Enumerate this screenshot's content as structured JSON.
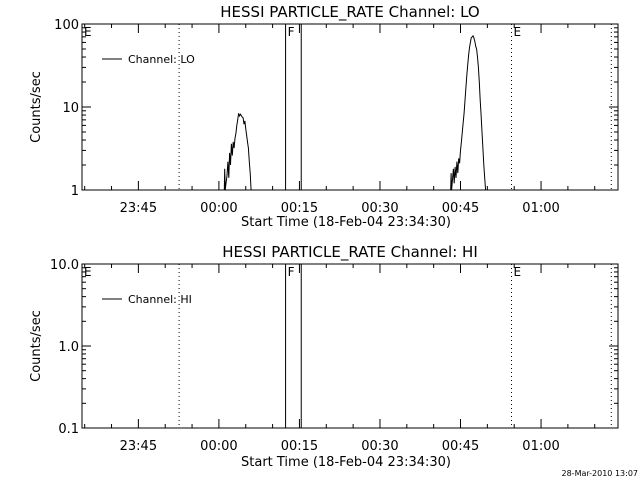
{
  "chart_data": [
    {
      "type": "line",
      "title": "HESSI PARTICLE_RATE Channel: LO",
      "xlabel": "Start Time (18-Feb-04 23:34:30)",
      "ylabel": "Counts/sec",
      "yscale": "log",
      "ylim": [
        1,
        100
      ],
      "xlim_seconds_from_start": [
        0,
        5990
      ],
      "x_tick_labels": [
        "23:45",
        "00:00",
        "00:15",
        "00:30",
        "00:45",
        "01:00"
      ],
      "x_tick_seconds_from_start": [
        630,
        1530,
        2430,
        3330,
        4230,
        5130
      ],
      "y_ticks": [
        1,
        10,
        100
      ],
      "y_tick_labels": [
        "1",
        "10",
        "100"
      ],
      "legend": {
        "label": "Channel: LO",
        "position": "top-left"
      },
      "series": [
        {
          "name": "Channel: LO",
          "x": [
            1590,
            1595,
            1600,
            1620,
            1630,
            1640,
            1650,
            1660,
            1670,
            1680,
            1690,
            1700,
            1710,
            1720,
            1730,
            1740,
            1750,
            1760,
            1770,
            1790,
            1800,
            1810,
            1820,
            1830,
            1840,
            1850,
            1860,
            1870,
            1880,
            1890,
            1900,
            1910,
            1920,
            1930
          ],
          "y": [
            1.0,
            1.8,
            1.0,
            1.5,
            2.2,
            1.4,
            2.8,
            2.0,
            3.6,
            2.6,
            3.8,
            3.2,
            4.2,
            4.8,
            6.0,
            7.0,
            8.4,
            7.8,
            8.2,
            7.6,
            7.4,
            6.2,
            6.8,
            5.4,
            4.6,
            3.8,
            3.2,
            2.2,
            1.6,
            1.0,
            1.0,
            1.0,
            1.0,
            1.0
          ]
        },
        {
          "name": "Channel: LO",
          "x": [
            4120,
            4125,
            4130,
            4150,
            4160,
            4170,
            4180,
            4190,
            4200,
            4210,
            4220,
            4230,
            4240,
            4250,
            4260,
            4270,
            4280,
            4290,
            4300,
            4310,
            4320,
            4330,
            4340,
            4350,
            4360,
            4370,
            4380,
            4390,
            4400,
            4410,
            4420,
            4430,
            4440,
            4450,
            4460,
            4470,
            4480,
            4490,
            4500,
            4510,
            4520,
            4530,
            4540,
            4550,
            4560,
            4570
          ],
          "y": [
            1.0,
            1.6,
            1.0,
            1.8,
            1.2,
            1.9,
            1.4,
            2.2,
            1.6,
            2.4,
            2.1,
            3.0,
            3.8,
            5.0,
            6.5,
            8.5,
            12,
            17,
            24,
            32,
            42,
            52,
            60,
            68,
            70,
            72,
            68,
            62,
            54,
            50,
            40,
            30,
            20,
            12,
            8,
            5,
            3.2,
            2.0,
            1.4,
            1.0,
            1.0,
            1.0,
            1.0,
            1.0,
            1.0,
            1.0
          ]
        }
      ],
      "annotations": [
        {
          "text": "E",
          "x": 0
        },
        {
          "text": "F",
          "x": 2275
        },
        {
          "text": "E",
          "x": 4800
        }
      ],
      "dotted_lines_x": [
        1085,
        4800,
        5915
      ],
      "solid_lines_x": [
        2275,
        2450
      ]
    },
    {
      "type": "line",
      "title": "HESSI PARTICLE_RATE Channel: HI",
      "xlabel": "Start Time (18-Feb-04 23:34:30)",
      "ylabel": "Counts/sec",
      "yscale": "log",
      "ylim": [
        0.1,
        10
      ],
      "xlim_seconds_from_start": [
        0,
        5990
      ],
      "x_tick_labels": [
        "23:45",
        "00:00",
        "00:15",
        "00:30",
        "00:45",
        "01:00"
      ],
      "x_tick_seconds_from_start": [
        630,
        1530,
        2430,
        3330,
        4230,
        5130
      ],
      "y_ticks": [
        0.1,
        1,
        10
      ],
      "y_tick_labels": [
        "0.1",
        "1.0",
        "10.0"
      ],
      "legend": {
        "label": "Channel: HI",
        "position": "top-left"
      },
      "series": [],
      "annotations": [
        {
          "text": "E",
          "x": 0
        },
        {
          "text": "F",
          "x": 2275
        },
        {
          "text": "E",
          "x": 4800
        }
      ],
      "dotted_lines_x": [
        1085,
        4800,
        5915
      ],
      "solid_lines_x": [
        2275,
        2450
      ]
    }
  ],
  "footer": {
    "timestamp": "28-Mar-2010 13:07"
  }
}
